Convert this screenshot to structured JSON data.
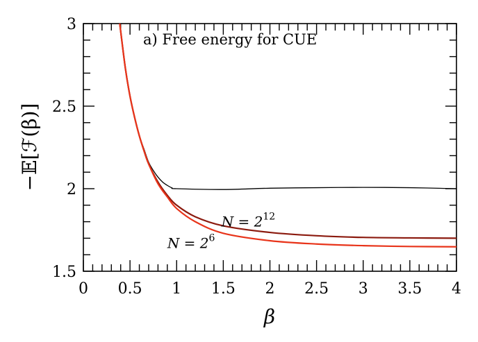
{
  "chart_data": {
    "type": "line",
    "title": "a) Free energy for CUE",
    "xlabel": "β",
    "ylabel": "−𝔼[ℱ(β)]",
    "xlim": [
      0,
      4
    ],
    "ylim": [
      1.5,
      3
    ],
    "x_ticks": [
      0,
      0.5,
      1,
      1.5,
      2,
      2.5,
      3,
      3.5,
      4
    ],
    "x_tick_labels": [
      "0",
      "0.5",
      "1",
      "1.5",
      "2",
      "2.5",
      "3",
      "3.5",
      "4"
    ],
    "y_ticks": [
      1.5,
      2,
      2.5,
      3
    ],
    "y_tick_labels": [
      "1.5",
      "2",
      "2.5",
      "3"
    ],
    "grid": false,
    "series": [
      {
        "name": "",
        "color": "#000000",
        "x": [
          0.39,
          0.45,
          0.5,
          0.55,
          0.6,
          0.65,
          0.7,
          0.75,
          0.8,
          0.85,
          0.9,
          0.95,
          1.0,
          1.5,
          2.0,
          2.5,
          3.0,
          3.5,
          4.0
        ],
        "y": [
          3.0,
          2.73,
          2.56,
          2.43,
          2.32,
          2.24,
          2.16,
          2.11,
          2.07,
          2.04,
          2.02,
          2.005,
          2.0,
          1.995,
          2.003,
          2.006,
          2.008,
          2.006,
          2.0
        ]
      },
      {
        "name": "",
        "color": "#8b1a0e",
        "x": [
          0.39,
          0.45,
          0.5,
          0.55,
          0.6,
          0.65,
          0.7,
          0.8,
          0.9,
          1.0,
          1.2,
          1.5,
          2.0,
          2.5,
          3.0,
          3.5,
          4.0
        ],
        "y": [
          3.0,
          2.73,
          2.56,
          2.43,
          2.32,
          2.23,
          2.15,
          2.04,
          1.96,
          1.9,
          1.83,
          1.775,
          1.735,
          1.715,
          1.705,
          1.702,
          1.7
        ]
      },
      {
        "name": "",
        "color": "#e8341a",
        "x": [
          0.39,
          0.45,
          0.5,
          0.55,
          0.6,
          0.65,
          0.7,
          0.8,
          0.9,
          1.0,
          1.2,
          1.5,
          2.0,
          2.5,
          3.0,
          3.5,
          4.0
        ],
        "y": [
          3.0,
          2.73,
          2.56,
          2.43,
          2.32,
          2.23,
          2.15,
          2.03,
          1.95,
          1.88,
          1.8,
          1.73,
          1.685,
          1.665,
          1.655,
          1.65,
          1.648
        ]
      }
    ],
    "annotations": [
      {
        "text_base": "N = 2",
        "text_exp": "12",
        "x": 1.48,
        "y": 1.77
      },
      {
        "text_base": "N = 2",
        "text_exp": "6",
        "x": 0.9,
        "y": 1.64
      }
    ]
  }
}
